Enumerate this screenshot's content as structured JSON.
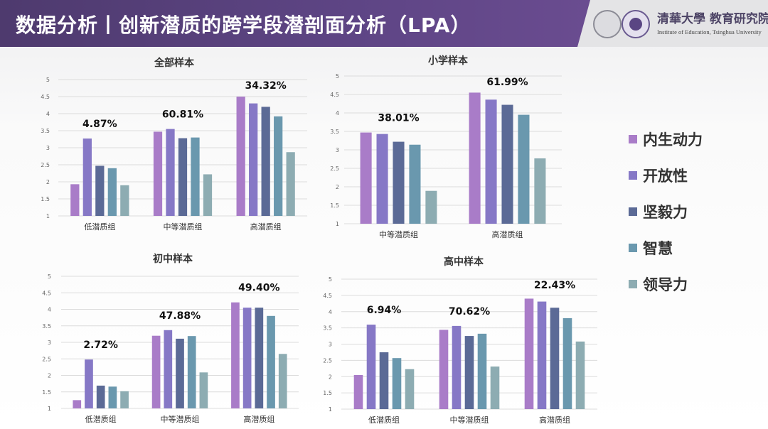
{
  "header": {
    "title": "数据分析丨创新潜质的跨学段潜剖面分析（LPA）",
    "logo_cn": "清華大學 教育研究院",
    "logo_en": "Institute of Education, Tsinghua University"
  },
  "legend": [
    {
      "label": "内生动力",
      "color": "#a97cc8"
    },
    {
      "label": "开放性",
      "color": "#8678c6"
    },
    {
      "label": "坚毅力",
      "color": "#5b6a96"
    },
    {
      "label": "智慧",
      "color": "#6a98ae"
    },
    {
      "label": "领导力",
      "color": "#8dacb2"
    }
  ],
  "chart_data": [
    {
      "type": "bar",
      "title": "全部样本",
      "categories": [
        "低潜质组",
        "中等潜质组",
        "高潜质组"
      ],
      "group_labels": [
        "4.87%",
        "60.81%",
        "34.32%"
      ],
      "ylim": [
        1,
        5
      ],
      "yticks": [
        "1",
        "1.5",
        "2",
        "2.5",
        "3",
        "3.5",
        "4",
        "4.5",
        "5"
      ],
      "grid": true,
      "legend": "right",
      "series": [
        {
          "name": "内生动力",
          "values": [
            1.93,
            3.47,
            4.5
          ]
        },
        {
          "name": "开放性",
          "values": [
            3.27,
            3.55,
            4.3
          ]
        },
        {
          "name": "坚毅力",
          "values": [
            2.47,
            3.28,
            4.2
          ]
        },
        {
          "name": "智慧",
          "values": [
            2.4,
            3.3,
            3.92
          ]
        },
        {
          "name": "领导力",
          "values": [
            1.9,
            2.22,
            2.87
          ]
        }
      ]
    },
    {
      "type": "bar",
      "title": "小学样本",
      "categories": [
        "中等潜质组",
        "高潜质组"
      ],
      "group_labels": [
        "38.01%",
        "61.99%"
      ],
      "ylim": [
        1,
        5
      ],
      "yticks": [
        "1",
        "1.5",
        "2",
        "2.5",
        "3",
        "3.5",
        "4",
        "4.5",
        "5"
      ],
      "grid": true,
      "legend": "right",
      "series": [
        {
          "name": "内生动力",
          "values": [
            3.47,
            4.55
          ]
        },
        {
          "name": "开放性",
          "values": [
            3.43,
            4.36
          ]
        },
        {
          "name": "坚毅力",
          "values": [
            3.22,
            4.22
          ]
        },
        {
          "name": "智慧",
          "values": [
            3.14,
            3.95
          ]
        },
        {
          "name": "领导力",
          "values": [
            1.89,
            2.77
          ]
        }
      ]
    },
    {
      "type": "bar",
      "title": "初中样本",
      "categories": [
        "低潜质组",
        "中等潜质组",
        "高潜质组"
      ],
      "group_labels": [
        "2.72%",
        "47.88%",
        "49.40%"
      ],
      "ylim": [
        1,
        5
      ],
      "yticks": [
        "1",
        "1.5",
        "2",
        "2.5",
        "3",
        "3.5",
        "4",
        "4.5",
        "5"
      ],
      "grid": true,
      "legend": "right",
      "series": [
        {
          "name": "内生动力",
          "values": [
            1.25,
            3.2,
            4.21
          ]
        },
        {
          "name": "开放性",
          "values": [
            2.48,
            3.37,
            4.05
          ]
        },
        {
          "name": "坚毅力",
          "values": [
            1.69,
            3.11,
            4.05
          ]
        },
        {
          "name": "智慧",
          "values": [
            1.66,
            3.19,
            3.8
          ]
        },
        {
          "name": "领导力",
          "values": [
            1.52,
            2.09,
            2.65
          ]
        }
      ]
    },
    {
      "type": "bar",
      "title": "高中样本",
      "categories": [
        "低潜质组",
        "中等潜质组",
        "高潜质组"
      ],
      "group_labels": [
        "6.94%",
        "70.62%",
        "22.43%"
      ],
      "ylim": [
        1,
        5
      ],
      "yticks": [
        "1",
        "1.5",
        "2",
        "2.5",
        "3",
        "3.5",
        "4",
        "4.5",
        "5"
      ],
      "grid": true,
      "legend": "right",
      "series": [
        {
          "name": "内生动力",
          "values": [
            2.05,
            3.44,
            4.4
          ]
        },
        {
          "name": "开放性",
          "values": [
            3.6,
            3.56,
            4.31
          ]
        },
        {
          "name": "坚毅力",
          "values": [
            2.75,
            3.25,
            4.12
          ]
        },
        {
          "name": "智慧",
          "values": [
            2.57,
            3.32,
            3.8
          ]
        },
        {
          "name": "领导力",
          "values": [
            2.23,
            2.31,
            3.08
          ]
        }
      ]
    }
  ]
}
